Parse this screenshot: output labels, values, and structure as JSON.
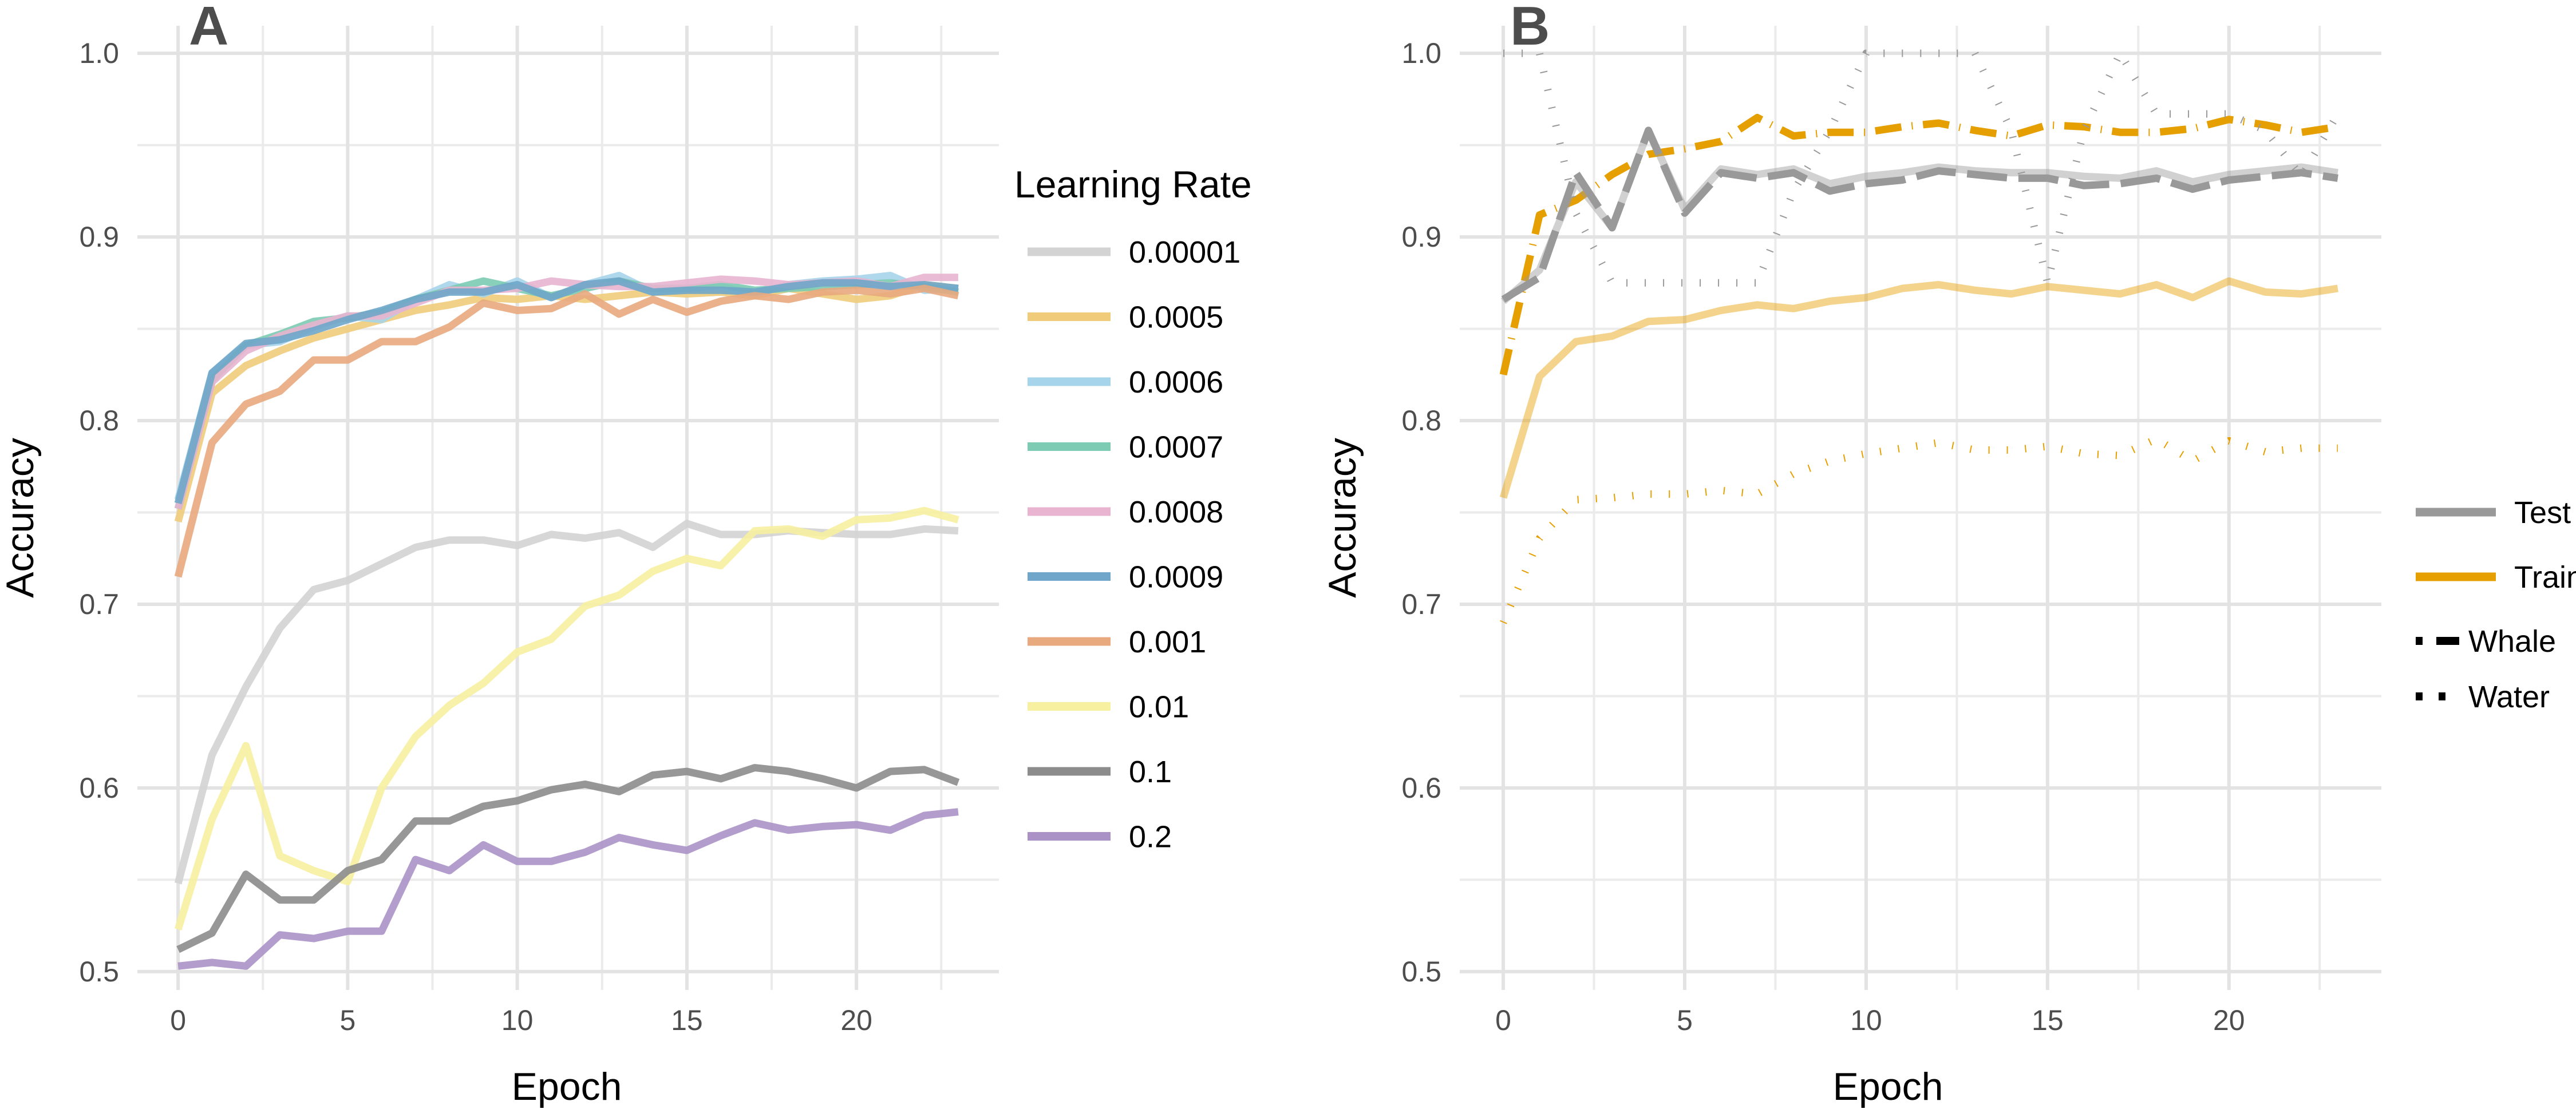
{
  "chart_data": [
    {
      "panel": "A",
      "type": "line",
      "xlabel": "Epoch",
      "ylabel": "Accuracy",
      "xlim": [
        -1.2,
        24.2
      ],
      "ylim": [
        0.49,
        1.015
      ],
      "xticks": [
        0,
        5,
        10,
        15,
        20
      ],
      "yticks": [
        0.5,
        0.6,
        0.7,
        0.8,
        0.9,
        1.0
      ],
      "ytick_labels": [
        "0.5",
        "0.6",
        "0.7",
        "0.8",
        "0.9",
        "1.0"
      ],
      "grid": true,
      "legend_title": "Learning Rate",
      "legend_position": "right",
      "x": [
        0,
        1,
        2,
        3,
        4,
        5,
        6,
        7,
        8,
        9,
        10,
        11,
        12,
        13,
        14,
        15,
        16,
        17,
        18,
        19,
        20,
        21,
        22,
        23
      ],
      "series": [
        {
          "name": "0.00001",
          "color": "#d3d3d3",
          "values": [
            0.548,
            0.618,
            0.655,
            0.687,
            0.708,
            0.713,
            0.722,
            0.731,
            0.735,
            0.735,
            0.732,
            0.738,
            0.736,
            0.739,
            0.731,
            0.744,
            0.738,
            0.738,
            0.74,
            0.739,
            0.738,
            0.738,
            0.741,
            0.74
          ]
        },
        {
          "name": "0.0005",
          "color": "#f0cc7a",
          "values": [
            0.745,
            0.815,
            0.83,
            0.838,
            0.845,
            0.85,
            0.855,
            0.86,
            0.863,
            0.867,
            0.866,
            0.868,
            0.866,
            0.868,
            0.87,
            0.869,
            0.87,
            0.868,
            0.872,
            0.869,
            0.866,
            0.868,
            0.874,
            0.872
          ]
        },
        {
          "name": "0.0006",
          "color": "#a6d4ea",
          "values": [
            0.757,
            0.826,
            0.841,
            0.843,
            0.851,
            0.857,
            0.855,
            0.866,
            0.874,
            0.869,
            0.876,
            0.867,
            0.874,
            0.879,
            0.87,
            0.872,
            0.873,
            0.869,
            0.874,
            0.876,
            0.877,
            0.879,
            0.871,
            0.872
          ]
        },
        {
          "name": "0.0007",
          "color": "#7ccbb2",
          "values": [
            0.752,
            0.822,
            0.841,
            0.847,
            0.854,
            0.856,
            0.859,
            0.866,
            0.871,
            0.876,
            0.872,
            0.868,
            0.872,
            0.876,
            0.872,
            0.872,
            0.874,
            0.871,
            0.872,
            0.873,
            0.874,
            0.875,
            0.873,
            0.87
          ]
        },
        {
          "name": "0.0008",
          "color": "#e8b4cf",
          "values": [
            0.752,
            0.821,
            0.838,
            0.846,
            0.852,
            0.857,
            0.857,
            0.864,
            0.871,
            0.871,
            0.872,
            0.876,
            0.874,
            0.873,
            0.873,
            0.875,
            0.877,
            0.876,
            0.874,
            0.875,
            0.876,
            0.873,
            0.878,
            0.878
          ]
        },
        {
          "name": "0.0009",
          "color": "#6fa6c9",
          "values": [
            0.755,
            0.826,
            0.842,
            0.844,
            0.849,
            0.855,
            0.86,
            0.866,
            0.87,
            0.87,
            0.874,
            0.867,
            0.874,
            0.876,
            0.87,
            0.871,
            0.871,
            0.87,
            0.873,
            0.875,
            0.875,
            0.873,
            0.874,
            0.872
          ]
        },
        {
          "name": "0.001",
          "color": "#e8a97e",
          "values": [
            0.715,
            0.788,
            0.809,
            0.816,
            0.833,
            0.833,
            0.843,
            0.843,
            0.851,
            0.864,
            0.86,
            0.861,
            0.869,
            0.858,
            0.866,
            0.859,
            0.865,
            0.868,
            0.866,
            0.87,
            0.871,
            0.869,
            0.872,
            0.868
          ]
        },
        {
          "name": "0.01",
          "color": "#f6f0a0",
          "values": [
            0.523,
            0.583,
            0.623,
            0.563,
            0.555,
            0.549,
            0.6,
            0.628,
            0.645,
            0.657,
            0.674,
            0.681,
            0.699,
            0.705,
            0.718,
            0.725,
            0.721,
            0.74,
            0.741,
            0.737,
            0.746,
            0.747,
            0.751,
            0.746
          ]
        },
        {
          "name": "0.1",
          "color": "#8c8c8c",
          "values": [
            0.512,
            0.521,
            0.553,
            0.539,
            0.539,
            0.555,
            0.561,
            0.582,
            0.582,
            0.59,
            0.593,
            0.599,
            0.602,
            0.598,
            0.607,
            0.609,
            0.605,
            0.611,
            0.609,
            0.605,
            0.6,
            0.609,
            0.61,
            0.603
          ]
        },
        {
          "name": "0.2",
          "color": "#ab92c6",
          "values": [
            0.503,
            0.505,
            0.503,
            0.52,
            0.518,
            0.522,
            0.522,
            0.561,
            0.555,
            0.569,
            0.56,
            0.56,
            0.565,
            0.573,
            0.569,
            0.566,
            0.574,
            0.581,
            0.577,
            0.579,
            0.58,
            0.577,
            0.585,
            0.587
          ]
        }
      ]
    },
    {
      "panel": "B",
      "type": "line",
      "xlabel": "Epoch",
      "ylabel": "Accuracy",
      "xlim": [
        -1.2,
        24.2
      ],
      "ylim": [
        0.49,
        1.015
      ],
      "xticks": [
        0,
        5,
        10,
        15,
        20
      ],
      "yticks": [
        0.5,
        0.6,
        0.7,
        0.8,
        0.9,
        1.0
      ],
      "ytick_labels": [
        "0.5",
        "0.6",
        "0.7",
        "0.8",
        "0.9",
        "1.0"
      ],
      "grid": true,
      "legend_position": "right",
      "color_legend": [
        {
          "name": "Test",
          "color": "#999999"
        },
        {
          "name": "Train",
          "color": "#e69f00"
        }
      ],
      "linetype_legend": [
        {
          "name": "Whale",
          "dash": "longdash"
        },
        {
          "name": "Water",
          "dash": "dotted"
        }
      ],
      "x": [
        0,
        1,
        2,
        3,
        4,
        5,
        6,
        7,
        8,
        9,
        10,
        11,
        12,
        13,
        14,
        15,
        16,
        17,
        18,
        19,
        20,
        21,
        22,
        23
      ],
      "series": [
        {
          "color": "Train",
          "linetype": "solid",
          "opacity": 0.45,
          "values": [
            0.758,
            0.824,
            0.843,
            0.846,
            0.854,
            0.855,
            0.86,
            0.863,
            0.861,
            0.865,
            0.867,
            0.872,
            0.874,
            0.871,
            0.869,
            0.873,
            0.871,
            0.869,
            0.874,
            0.867,
            0.876,
            0.87,
            0.869,
            0.872
          ]
        },
        {
          "color": "Train",
          "linetype": "dotted",
          "opacity": 1.0,
          "values": [
            0.69,
            0.736,
            0.757,
            0.758,
            0.76,
            0.76,
            0.762,
            0.76,
            0.771,
            0.778,
            0.782,
            0.785,
            0.788,
            0.784,
            0.784,
            0.786,
            0.782,
            0.781,
            0.79,
            0.778,
            0.789,
            0.783,
            0.785,
            0.785
          ]
        },
        {
          "color": "Train",
          "linetype": "dotdash",
          "opacity": 1.0,
          "values": [
            0.825,
            0.912,
            0.92,
            0.934,
            0.945,
            0.948,
            0.952,
            0.965,
            0.955,
            0.957,
            0.957,
            0.96,
            0.962,
            0.958,
            0.955,
            0.961,
            0.96,
            0.957,
            0.957,
            0.959,
            0.964,
            0.961,
            0.957,
            0.96
          ]
        },
        {
          "color": "Test",
          "linetype": "solid",
          "opacity": 0.45,
          "values": [
            0.865,
            0.882,
            0.93,
            0.905,
            0.958,
            0.915,
            0.937,
            0.934,
            0.937,
            0.929,
            0.933,
            0.935,
            0.938,
            0.936,
            0.935,
            0.935,
            0.933,
            0.932,
            0.936,
            0.93,
            0.934,
            0.936,
            0.938,
            0.935
          ]
        },
        {
          "color": "Test",
          "linetype": "longdash",
          "opacity": 1.0,
          "values": [
            0.866,
            0.878,
            0.935,
            0.905,
            0.958,
            0.913,
            0.935,
            0.932,
            0.935,
            0.925,
            0.929,
            0.931,
            0.936,
            0.934,
            0.932,
            0.932,
            0.928,
            0.929,
            0.932,
            0.926,
            0.931,
            0.933,
            0.935,
            0.932
          ]
        },
        {
          "color": "Test",
          "linetype": "dotted",
          "opacity": 1.0,
          "values": [
            1.0,
            1.0,
            0.913,
            0.875,
            0.875,
            0.875,
            0.875,
            0.875,
            0.925,
            0.958,
            1.0,
            1.0,
            1.0,
            1.0,
            0.958,
            0.875,
            0.958,
            1.0,
            0.967,
            0.967,
            0.967,
            0.958,
            0.933,
            0.967
          ]
        }
      ]
    }
  ]
}
